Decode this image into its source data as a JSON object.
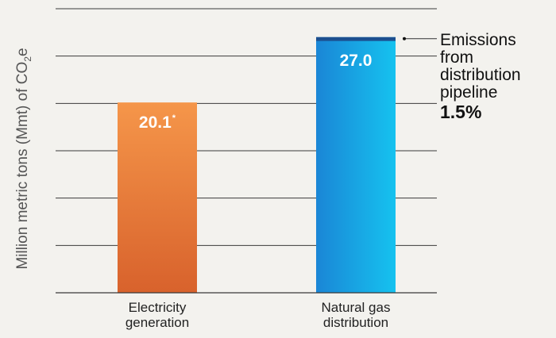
{
  "chart_data": {
    "type": "bar",
    "title": "",
    "xlabel": "",
    "ylabel": "Million metric tons (Mmt) of CO",
    "ylabel_sub": "2",
    "ylabel_suffix": "e",
    "ylim": [
      0,
      30
    ],
    "grid": true,
    "categories": [
      "Electricity generation",
      "Natural gas distribution"
    ],
    "categories_lines": [
      [
        "Electricity",
        "generation"
      ],
      [
        "Natural gas",
        "distribution"
      ]
    ],
    "values": [
      20.1,
      27.0
    ],
    "data_labels": [
      "20.1",
      "27.0"
    ],
    "data_label_marks": [
      "*",
      ""
    ],
    "segment": {
      "category": "Natural gas distribution",
      "label_lines": [
        "Emissions",
        "from",
        "distribution",
        "pipeline"
      ],
      "value_label": "1.5%",
      "share": 0.015
    },
    "colors": {
      "electricity_top": "#f5964a",
      "electricity_bottom": "#d8622c",
      "gas_left": "#1a86d6",
      "gas_right": "#16c2ef",
      "pipeline_segment": "#1c4f8f",
      "grid": "#3a3a3a",
      "axis": "#3a3a3a"
    }
  }
}
